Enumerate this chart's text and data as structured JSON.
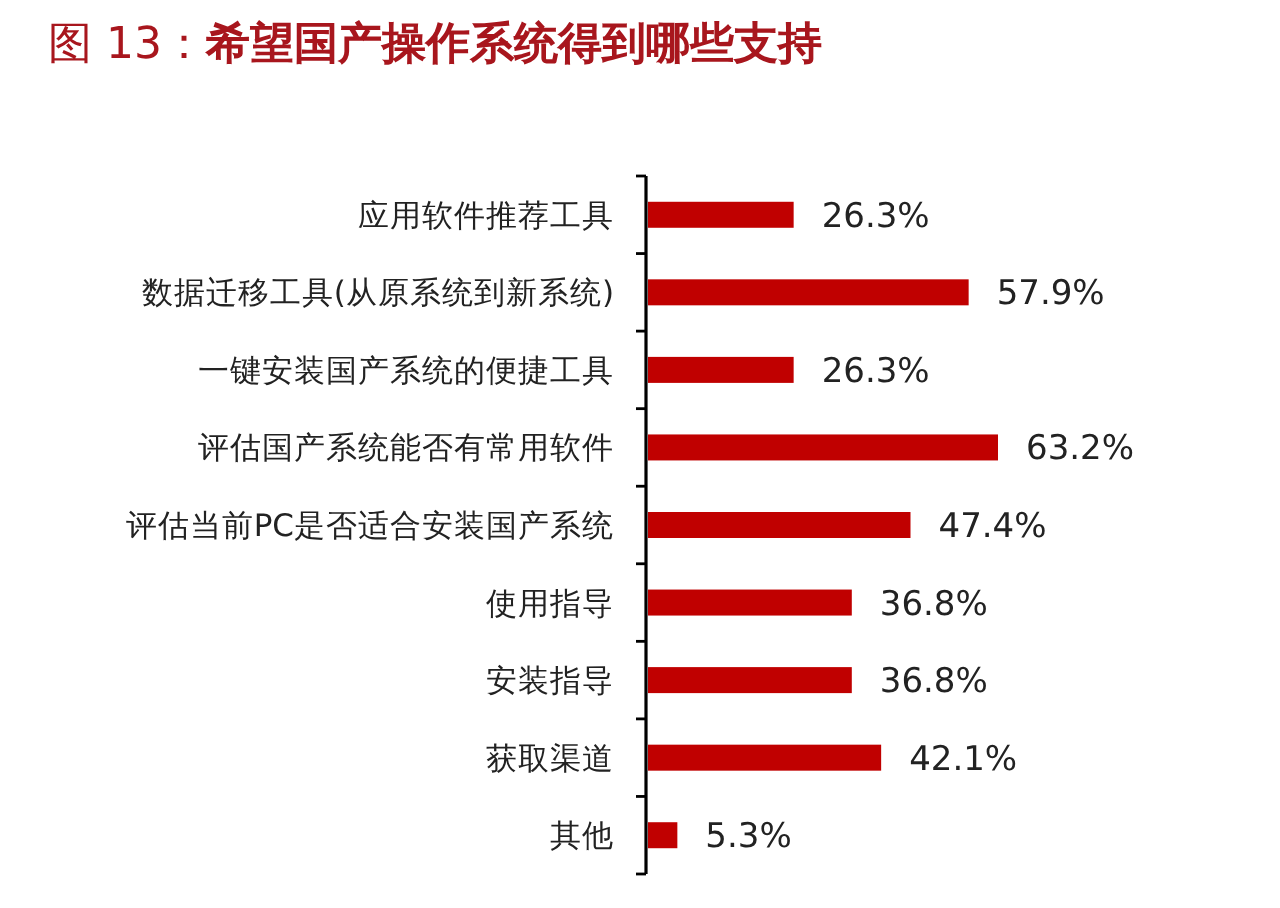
{
  "chart_data": {
    "type": "bar",
    "orientation": "horizontal",
    "title": "图 13：**希望国产操作系统得到哪些支持**",
    "categories": [
      "应用软件推荐工具",
      "数据迁移工具(从原系统到新系统)",
      "一键安装国产系统的便捷工具",
      "评估国产系统能否有常用软件",
      "评估当前PC是否适合安装国产系统",
      "使用指导",
      "安装指导",
      "获取渠道",
      "其他"
    ],
    "values": [
      26.3,
      57.9,
      26.3,
      63.2,
      47.4,
      36.8,
      36.8,
      42.1,
      5.3
    ],
    "value_labels": [
      "26.3%",
      "57.9%",
      "26.3%",
      "63.2%",
      "47.4%",
      "36.8%",
      "36.8%",
      "42.1%",
      "5.3%"
    ],
    "color": "#c00000",
    "tick_labels": "y"
  }
}
